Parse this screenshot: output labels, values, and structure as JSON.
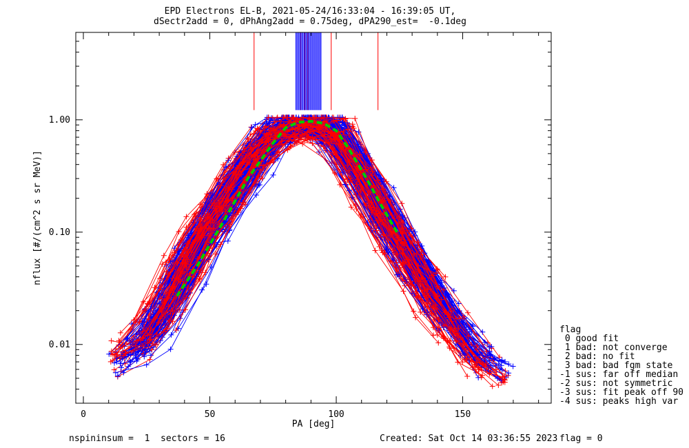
{
  "title_line1": "EPD Electrons EL-B, 2021-05-24/16:33:04 - 16:39:05 UT,",
  "title_line2": "dSectr2add = 0, dPhAng2add = 0.75deg, dPA290_est=  -0.1deg",
  "footer_left": "nspininsum =  1  sectors = 16",
  "footer_created": "Created: Sat Oct 14 03:36:55 2023",
  "footer_flag": "flag = 0",
  "legend": {
    "title": "flag",
    "items": [
      " 0 good fit",
      " 1 bad: not converge",
      " 2 bad: no fit",
      " 3 bad: bad fgm state",
      "-1 sus: far off median",
      "-2 sus: not symmetric",
      "-3 sus: fit peak off 90",
      "-4 sus: peaks high var"
    ]
  },
  "chart_data": {
    "type": "line",
    "title": "EPD Electrons EL-B, 2021-05-24/16:33:04 - 16:39:05 UT, dSectr2add = 0, dPhAng2add = 0.75deg, dPA290_est=  -0.1deg",
    "xlabel": "PA [deg]",
    "ylabel": "nflux [#/(cm^2 s sr MeV)]",
    "xlim": [
      -3,
      185
    ],
    "ylim": [
      0.003,
      6
    ],
    "yscale": "log",
    "xticks": [
      0,
      50,
      100,
      150
    ],
    "xtick_labels": [
      "0",
      "50",
      "100",
      "150"
    ],
    "yticks": [
      0.01,
      0.1,
      1.0
    ],
    "ytick_labels": [
      "0.01",
      "0.10",
      "1.00"
    ],
    "grid": false,
    "colors": {
      "series_a": "#0000ff",
      "series_b": "#ff0000",
      "fit": "#00cc00"
    },
    "series": [
      {
        "color": "#0000ff",
        "marker": "+",
        "style": "many overlaid spectra",
        "x": [
          15,
          25,
          35,
          45,
          55,
          65,
          75,
          80,
          90,
          99,
          105,
          115,
          125,
          135,
          145,
          155,
          165
        ],
        "y": [
          0.007,
          0.011,
          0.025,
          0.07,
          0.16,
          0.36,
          0.72,
          0.9,
          0.95,
          0.9,
          0.55,
          0.22,
          0.09,
          0.04,
          0.018,
          0.009,
          0.006
        ]
      },
      {
        "color": "#ff0000",
        "marker": "+",
        "style": "many overlaid spectra",
        "x": [
          15,
          25,
          35,
          45,
          55,
          65,
          75,
          80,
          90,
          99,
          105,
          115,
          125,
          135,
          145,
          155,
          165
        ],
        "y": [
          0.008,
          0.013,
          0.03,
          0.08,
          0.18,
          0.4,
          0.75,
          0.85,
          0.9,
          0.85,
          0.5,
          0.2,
          0.08,
          0.035,
          0.016,
          0.008,
          0.005
        ]
      },
      {
        "color": "#00cc00",
        "style": "dashed fit",
        "x": [
          37,
          45,
          55,
          65,
          75,
          80,
          85,
          90,
          95,
          100,
          105,
          112,
          118,
          124
        ],
        "y": [
          0.027,
          0.05,
          0.12,
          0.3,
          0.62,
          0.85,
          0.95,
          0.97,
          0.93,
          0.8,
          0.55,
          0.3,
          0.17,
          0.1
        ]
      }
    ],
    "vertical_lines": [
      {
        "color": "#ff0000",
        "x": [
          67.5,
          86,
          87.5,
          88.8,
          98,
          116.5
        ]
      },
      {
        "color": "#0000ff",
        "x_range": [
          84,
          94
        ],
        "count": 25
      }
    ]
  }
}
